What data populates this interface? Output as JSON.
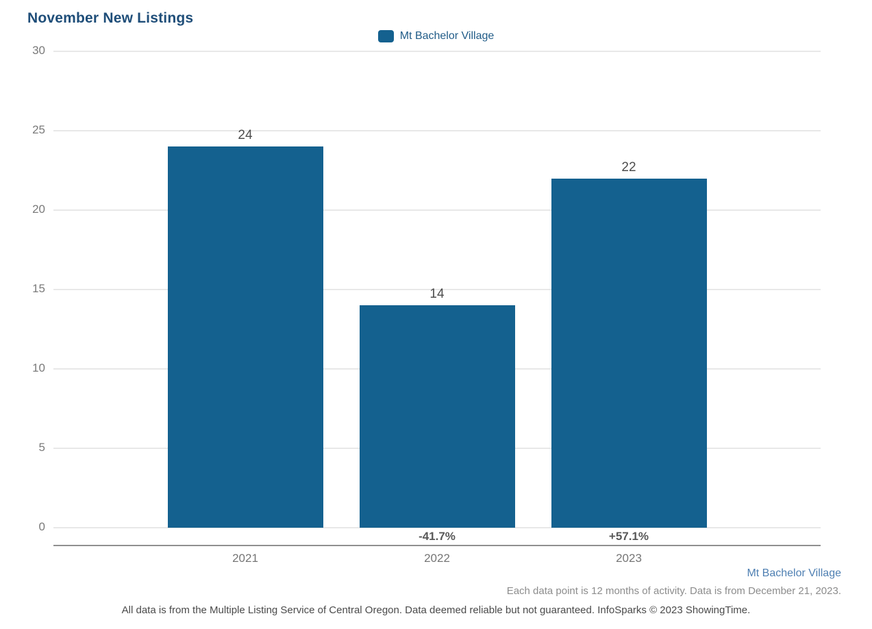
{
  "title": "November New Listings",
  "legend": {
    "label": "Mt Bachelor Village"
  },
  "chart_data": {
    "type": "bar",
    "title": "November New Listings",
    "categories": [
      "2021",
      "2022",
      "2023"
    ],
    "series": [
      {
        "name": "Mt Bachelor Village",
        "values": [
          24,
          14,
          22
        ]
      }
    ],
    "value_labels": [
      "24",
      "14",
      "22"
    ],
    "pct_change_labels": [
      "",
      "-41.7%",
      "+57.1%"
    ],
    "xlabel": "",
    "ylabel": "",
    "ylim": [
      0,
      30
    ],
    "yticks": [
      0,
      5,
      10,
      15,
      20,
      25,
      30
    ],
    "grid": true,
    "legend_position": "top-center"
  },
  "footer": {
    "series_link": "Mt Bachelor Village",
    "note_right": "Each data point is 12 months of activity. Data is from December 21, 2023.",
    "note_center": "All data is from the Multiple Listing Service of Central Oregon. Data deemed reliable but not guaranteed. InfoSparks © 2023 ShowingTime."
  },
  "colors": {
    "bar": "#14618F",
    "title": "#1F4E79",
    "legend_text": "#215C88",
    "link": "#4E7FB2",
    "gridline": "#E8E8E8",
    "axis_line": "#8F8F8F",
    "ytick_label": "#7A7A7A",
    "value_label": "#4D4D4D",
    "pct_label": "#585858",
    "category_label": "#757575",
    "note_right": "#8C8C8C",
    "note_center": "#4A4A4A"
  }
}
